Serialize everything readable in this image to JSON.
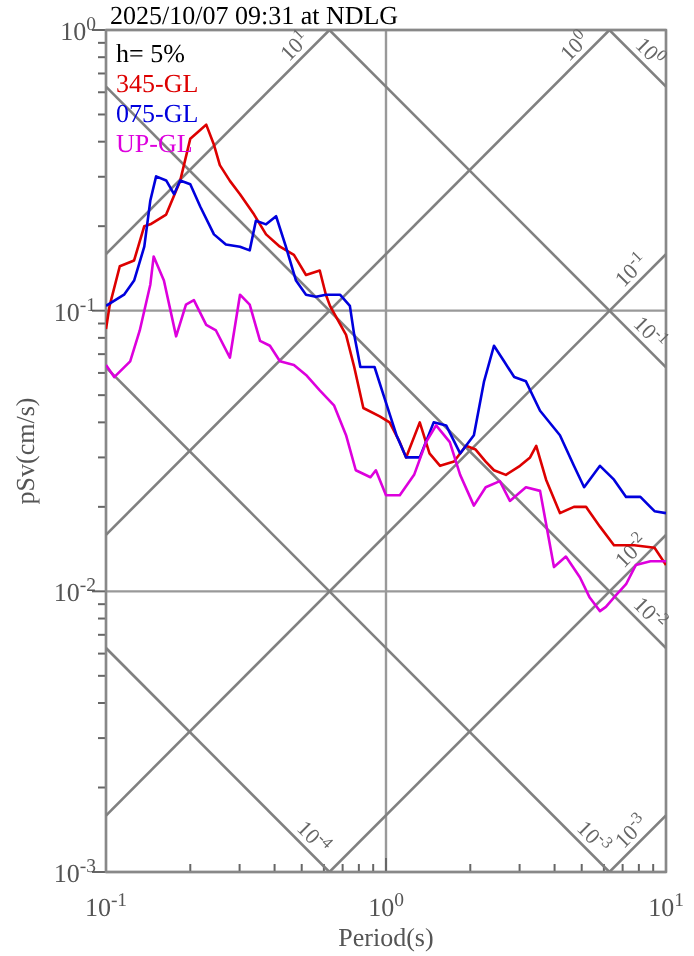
{
  "chart_data": {
    "type": "line",
    "title": "2025/10/07 09:31 at NDLG",
    "xlabel": "Period(s)",
    "ylabel": "pSv(cm/s)",
    "log": "xy",
    "grid": true,
    "legend": "top left",
    "annotations": [
      "h= 5%"
    ],
    "xlim": [
      0.1,
      10
    ],
    "ylim": [
      0.001,
      1
    ],
    "xticks": [
      {
        "value": 0.1,
        "label": "10$^{-1}$"
      },
      {
        "value": 0.2,
        "label": null
      },
      {
        "value": 0.3,
        "label": null
      },
      {
        "value": 0.4,
        "label": null
      },
      {
        "value": 0.5,
        "label": null
      },
      {
        "value": 0.6,
        "label": null
      },
      {
        "value": 0.7,
        "label": null
      },
      {
        "value": 0.8,
        "label": null
      },
      {
        "value": 0.9,
        "label": null
      },
      {
        "value": 1,
        "label": "10$^{0}$"
      },
      {
        "value": 2,
        "label": null
      },
      {
        "value": 3,
        "label": null
      },
      {
        "value": 4,
        "label": null
      },
      {
        "value": 5,
        "label": null
      },
      {
        "value": 6,
        "label": null
      },
      {
        "value": 7,
        "label": null
      },
      {
        "value": 8,
        "label": null
      },
      {
        "value": 9,
        "label": null
      },
      {
        "value": 10,
        "label": "10$^{1}$"
      }
    ],
    "yticks": [
      {
        "value": 0.001,
        "label": "10$^{-3}$"
      },
      {
        "value": 0.002,
        "label": null
      },
      {
        "value": 0.003,
        "label": null
      },
      {
        "value": 0.004,
        "label": null
      },
      {
        "value": 0.005,
        "label": null
      },
      {
        "value": 0.006,
        "label": null
      },
      {
        "value": 0.007,
        "label": null
      },
      {
        "value": 0.008,
        "label": null
      },
      {
        "value": 0.009,
        "label": null
      },
      {
        "value": 0.01,
        "label": "10$^{-2}$"
      },
      {
        "value": 0.02,
        "label": null
      },
      {
        "value": 0.03,
        "label": null
      },
      {
        "value": 0.04,
        "label": null
      },
      {
        "value": 0.05,
        "label": null
      },
      {
        "value": 0.06,
        "label": null
      },
      {
        "value": 0.07,
        "label": null
      },
      {
        "value": 0.08,
        "label": null
      },
      {
        "value": 0.09,
        "label": null
      },
      {
        "value": 0.1,
        "label": "10$^{-1}$"
      },
      {
        "value": 0.2,
        "label": null
      },
      {
        "value": 0.3,
        "label": null
      },
      {
        "value": 0.4,
        "label": null
      },
      {
        "value": 0.5,
        "label": null
      },
      {
        "value": 0.6,
        "label": null
      },
      {
        "value": 0.7,
        "label": null
      },
      {
        "value": 0.8,
        "label": null
      },
      {
        "value": 0.9,
        "label": null
      },
      {
        "value": 1,
        "label": "10$^{0}$"
      }
    ],
    "series": [
      {
        "name": "10$^{1}$",
        "color": "#808080",
        "x": [
          0.1,
          0.628
        ],
        "values": [
          0.159,
          1
        ]
      },
      {
        "name": "10$^{0}$",
        "color": "#808080",
        "x": [
          0.1,
          6.28
        ],
        "values": [
          0.0159,
          1
        ]
      },
      {
        "name": "10$^{-1}$",
        "color": "#808080",
        "x": [
          0.1,
          10
        ],
        "values": [
          0.00159,
          0.159
        ]
      },
      {
        "name": "10$^{-2}$",
        "color": "#808080",
        "x": [
          0.628,
          10
        ],
        "values": [
          0.001,
          0.0159
        ]
      },
      {
        "name": "10$^{-3}$",
        "color": "#808080",
        "x": [
          6.28,
          10
        ],
        "values": [
          0.001,
          0.00159
        ]
      },
      {
        "name": "10$^{0}$",
        "color": "#808080",
        "x": [
          6.28,
          10
        ],
        "values": [
          1,
          0.628
        ]
      },
      {
        "name": "10$^{-1}$",
        "color": "#808080",
        "x": [
          0.628,
          10
        ],
        "values": [
          1,
          0.0628
        ]
      },
      {
        "name": "10$^{-2}$",
        "color": "#808080",
        "x": [
          0.1,
          10
        ],
        "values": [
          0.628,
          0.00628
        ]
      },
      {
        "name": "10$^{-3}$",
        "color": "#808080",
        "x": [
          0.1,
          6.28
        ],
        "values": [
          0.0628,
          0.001
        ]
      },
      {
        "name": "10$^{-4}$",
        "color": "#808080",
        "x": [
          0.1,
          0.628
        ],
        "values": [
          0.00628,
          0.001
        ]
      },
      {
        "name": "345-GL",
        "color": "#dd0000",
        "x": [
          0.1,
          0.103,
          0.112,
          0.126,
          0.137,
          0.144,
          0.164,
          0.184,
          0.2,
          0.217,
          0.228,
          0.243,
          0.255,
          0.277,
          0.301,
          0.338,
          0.373,
          0.418,
          0.469,
          0.518,
          0.58,
          0.61,
          0.631,
          0.72,
          0.77,
          0.83,
          0.95,
          1.03,
          1.12,
          1.18,
          1.32,
          1.43,
          1.56,
          1.75,
          1.93,
          2.09,
          2.27,
          2.43,
          2.68,
          3.01,
          3.27,
          3.44,
          3.73,
          4.18,
          4.69,
          5.18,
          5.81,
          6.52,
          7.7,
          9.1,
          10
        ],
        "values": [
          0.086,
          0.104,
          0.144,
          0.151,
          0.2,
          0.203,
          0.22,
          0.29,
          0.41,
          0.44,
          0.46,
          0.39,
          0.33,
          0.29,
          0.26,
          0.22,
          0.187,
          0.169,
          0.158,
          0.134,
          0.139,
          0.114,
          0.104,
          0.082,
          0.063,
          0.045,
          0.042,
          0.04,
          0.034,
          0.03,
          0.04,
          0.031,
          0.028,
          0.029,
          0.033,
          0.032,
          0.029,
          0.027,
          0.026,
          0.028,
          0.03,
          0.033,
          0.025,
          0.019,
          0.02,
          0.02,
          0.017,
          0.0146,
          0.0146,
          0.0143,
          0.0124
        ]
      },
      {
        "name": "075-GL",
        "color": "#0000dd",
        "x": [
          0.1,
          0.116,
          0.126,
          0.137,
          0.144,
          0.151,
          0.164,
          0.175,
          0.184,
          0.2,
          0.217,
          0.243,
          0.268,
          0.301,
          0.326,
          0.343,
          0.373,
          0.405,
          0.439,
          0.477,
          0.518,
          0.562,
          0.61,
          0.685,
          0.743,
          0.77,
          0.81,
          0.91,
          0.98,
          1.09,
          1.18,
          1.32,
          1.48,
          1.64,
          1.84,
          2.06,
          2.24,
          2.43,
          2.64,
          2.87,
          3.16,
          3.55,
          4.18,
          4.69,
          5.1,
          5.81,
          6.52,
          7.2,
          8.1,
          9.1,
          10
        ],
        "values": [
          0.104,
          0.114,
          0.128,
          0.169,
          0.247,
          0.301,
          0.291,
          0.26,
          0.291,
          0.282,
          0.235,
          0.187,
          0.172,
          0.169,
          0.164,
          0.209,
          0.203,
          0.217,
          0.169,
          0.128,
          0.114,
          0.112,
          0.114,
          0.114,
          0.104,
          0.082,
          0.063,
          0.063,
          0.05,
          0.036,
          0.03,
          0.03,
          0.04,
          0.039,
          0.031,
          0.036,
          0.056,
          0.075,
          0.066,
          0.058,
          0.056,
          0.044,
          0.036,
          0.028,
          0.0235,
          0.028,
          0.025,
          0.0217,
          0.0217,
          0.0193,
          0.019
        ]
      },
      {
        "name": "UP-GL",
        "color": "#dd00dd",
        "x": [
          0.1,
          0.107,
          0.122,
          0.132,
          0.144,
          0.148,
          0.161,
          0.178,
          0.193,
          0.206,
          0.228,
          0.247,
          0.277,
          0.301,
          0.326,
          0.355,
          0.385,
          0.418,
          0.469,
          0.518,
          0.58,
          0.652,
          0.72,
          0.78,
          0.88,
          0.92,
          1.0,
          1.12,
          1.26,
          1.39,
          1.51,
          1.69,
          1.84,
          2.06,
          2.27,
          2.55,
          2.77,
          3.16,
          3.55,
          3.98,
          4.39,
          4.93,
          5.34,
          5.81,
          6.1,
          6.63,
          7.2,
          7.8,
          8.8,
          10
        ],
        "values": [
          0.064,
          0.058,
          0.066,
          0.085,
          0.124,
          0.156,
          0.128,
          0.081,
          0.105,
          0.109,
          0.089,
          0.085,
          0.068,
          0.114,
          0.105,
          0.078,
          0.075,
          0.066,
          0.064,
          0.059,
          0.052,
          0.046,
          0.036,
          0.027,
          0.0255,
          0.027,
          0.022,
          0.022,
          0.026,
          0.034,
          0.039,
          0.034,
          0.026,
          0.0202,
          0.0235,
          0.0247,
          0.021,
          0.0235,
          0.0228,
          0.0122,
          0.0133,
          0.0112,
          0.0095,
          0.0085,
          0.0088,
          0.0097,
          0.0106,
          0.0124,
          0.0128,
          0.0128
        ]
      }
    ]
  }
}
